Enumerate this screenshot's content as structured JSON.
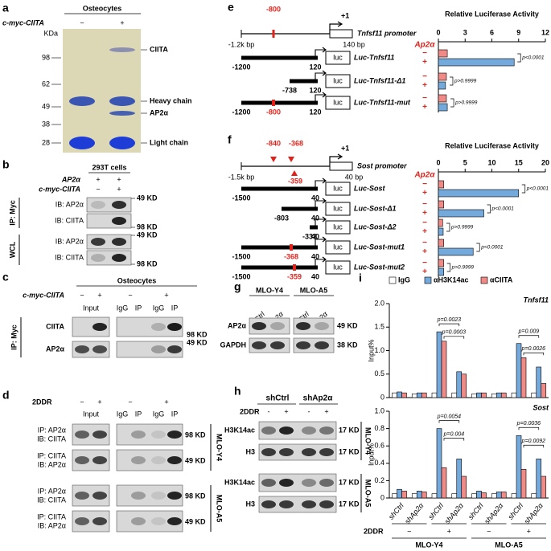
{
  "panel_a": {
    "label": "a",
    "title": "Osteocytes",
    "row_label": "c-myc-CIITA",
    "signs": [
      "−",
      "+"
    ],
    "unit": "KDa",
    "markers": [
      98,
      62,
      49,
      38,
      28
    ],
    "bands": [
      "CIITA",
      "Heavy chain",
      "AP2α",
      "Light chain"
    ]
  },
  "panel_b": {
    "label": "b",
    "title": "293T cells",
    "rows": [
      {
        "label": "AP2α",
        "signs": [
          "+",
          "+"
        ]
      },
      {
        "label": "c-myc-CIITA",
        "signs": [
          "−",
          "+"
        ]
      }
    ],
    "groups": [
      {
        "label": "IP: Myc",
        "blots": [
          {
            "label": "IB: AP2α",
            "size": "49 KD"
          },
          {
            "label": "IB: CIITA",
            "size": "98 KD"
          }
        ]
      },
      {
        "label": "WCL",
        "blots": [
          {
            "label": "IB: AP2α",
            "size": "49 KD"
          },
          {
            "label": "IB: CIITA",
            "size": "98 KD"
          }
        ]
      }
    ]
  },
  "panel_c": {
    "label": "c",
    "title": "Osteocytes",
    "row_label": "c-myc-CIITA",
    "signs": [
      "−",
      "+",
      "−",
      "+"
    ],
    "lanes": [
      "Input",
      "IgG",
      "IP",
      "IgG",
      "IP"
    ],
    "group": "IP: Myc",
    "blots": [
      {
        "label": "CIITA",
        "size": "98 KD"
      },
      {
        "label": "AP2α",
        "size": "49 KD"
      }
    ]
  },
  "panel_d": {
    "label": "d",
    "row_label": "2DDR",
    "signs": [
      "−",
      "+",
      "−",
      "+"
    ],
    "lanes": [
      "Input",
      "IgG",
      "IP",
      "IgG",
      "IP"
    ],
    "blots": [
      {
        "ip": "IP: AP2α",
        "ib": "IB: CIITA",
        "size": "98 KD"
      },
      {
        "ip": "IP: CIITA",
        "ib": "IB: AP2α",
        "size": "49 KD"
      },
      {
        "ip": "IP: AP2α",
        "ib": "IB: CIITA",
        "size": "98 KD"
      },
      {
        "ip": "IP: CIITA",
        "ib": "IB: AP2α",
        "size": "49 KD"
      }
    ],
    "cells": [
      "MLO-Y4",
      "MLO-A5"
    ]
  },
  "panel_e": {
    "label": "e",
    "mutations": [
      "-800"
    ],
    "tss": "+1",
    "promoter": "Tnfsf11 promoter",
    "start": "-1.2k bp",
    "end": "140 bp",
    "constructs": [
      {
        "start": "-1200",
        "end": "120",
        "box": "luc",
        "name": "Luc-Tnfsf11"
      },
      {
        "start": "-738",
        "end": "120",
        "box": "luc",
        "name": "Luc-Tnfsf11-Δ1"
      },
      {
        "start": "-1200",
        "mut": "-800",
        "end": "120",
        "box": "luc",
        "name": "Luc-Tnfsf11-mut"
      }
    ]
  },
  "panel_f": {
    "label": "f",
    "mutations": [
      "-840",
      "-368",
      "-359"
    ],
    "tss": "+1",
    "promoter": "Sost promoter",
    "start": "-1.5k bp",
    "end": "40 bp",
    "constructs": [
      {
        "start": "-1500",
        "end": "40",
        "box": "luc",
        "name": "Luc-Sost"
      },
      {
        "start": "-803",
        "end": "40",
        "box": "luc",
        "name": "Luc-Sost-Δ1"
      },
      {
        "start": "-333",
        "end": "40",
        "box": "luc",
        "name": "Luc-Sost-Δ2"
      },
      {
        "start": "-1500",
        "mut": "-368",
        "end": "40",
        "box": "luc",
        "name": "Luc-Sost-mut1"
      },
      {
        "start": "-1500",
        "mut": "-359",
        "end": "40",
        "box": "luc",
        "name": "Luc-Sost-mut2"
      }
    ]
  },
  "panel_g": {
    "label": "g",
    "cells": [
      "MLO-Y4",
      "MLO-A5"
    ],
    "lanes": [
      "shCtrl",
      "shAp2α",
      "shCtrl",
      "shAp2α"
    ],
    "blots": [
      {
        "label": "AP2α",
        "size": "49 KD"
      },
      {
        "label": "GAPDH",
        "size": "38 KD"
      }
    ]
  },
  "panel_h": {
    "label": "h",
    "groups": [
      "shCtrl",
      "shAp2α"
    ],
    "row_label": "2DDR",
    "signs": [
      "-",
      "+",
      "-",
      "+"
    ],
    "blots": [
      {
        "label": "H3K14ac",
        "size": "17 KD"
      },
      {
        "label": "H3",
        "size": "17 KD"
      },
      {
        "label": "H3K14ac",
        "size": "17 KD"
      },
      {
        "label": "H3",
        "size": "17 KD"
      }
    ],
    "cells": [
      "MLO-Y4",
      "MLO-A5"
    ]
  },
  "panel_i": {
    "label": "i",
    "categories": [
      "shCtrl",
      "shAp2α",
      "shCtrl",
      "shAp2α",
      "shCtrl",
      "shAp2α",
      "shCtrl",
      "shAp2α"
    ],
    "row_label": "2DDR",
    "signs": [
      "−",
      "+",
      "−",
      "+"
    ],
    "cells": [
      "MLO-Y4",
      "MLO-A5"
    ]
  },
  "chart_data": [
    {
      "type": "hbar",
      "title": "Relative Luciferase Activity",
      "signs_label": "Ap2α",
      "xlim": [
        0,
        12
      ],
      "xticks": [
        0,
        3,
        6,
        9,
        12
      ],
      "series": [
        {
          "name": "−",
          "color": "#ef8a87",
          "values": [
            1,
            0.9,
            0.9
          ]
        },
        {
          "name": "+",
          "color": "#74a9dc",
          "values": [
            8.5,
            0.8,
            1
          ]
        }
      ],
      "p_values": [
        "p<0.0001",
        "p>0.9999",
        "p>0.9999"
      ]
    },
    {
      "type": "hbar",
      "title": "Relative Luciferase Activity",
      "signs_label": "Ap2α",
      "xlim": [
        0,
        20
      ],
      "xticks": [
        0,
        5,
        10,
        15,
        20
      ],
      "series": [
        {
          "name": "−",
          "color": "#ef8a87",
          "values": [
            1,
            1,
            0.8,
            1,
            1
          ]
        },
        {
          "name": "+",
          "color": "#74a9dc",
          "values": [
            15,
            8.5,
            0.9,
            6.5,
            1
          ]
        }
      ],
      "p_values": [
        "p<0.0001",
        "p<0.0001",
        "p>0.9999",
        "p<0.0001",
        "p>0.9999"
      ]
    },
    {
      "type": "grouped_bar",
      "title": "Tnfsf11",
      "ylabel": "Input%",
      "ylim": [
        0,
        2
      ],
      "yticks": [
        0,
        0.5,
        {
          "value": 1,
          "label": "1.0"
        },
        1.5,
        {
          "value": 2,
          "label": "2.0"
        }
      ],
      "series": [
        {
          "name": "IgG",
          "color": "#ffffff",
          "values": [
            0.1,
            0.08,
            0.1,
            0.1,
            0.08,
            0.08,
            0.1,
            0.1
          ]
        },
        {
          "name": "αH3K14ac",
          "color": "#74a9dc",
          "values": [
            0.12,
            0.1,
            1.4,
            0.55,
            0.1,
            0.1,
            1.15,
            0.65
          ]
        },
        {
          "name": "αCIITA",
          "color": "#ef8a87",
          "values": [
            0.1,
            0.1,
            1.2,
            0.5,
            0.1,
            0.1,
            0.85,
            0.3
          ]
        }
      ],
      "p_values": [
        "p=0.0023",
        "p=0.0003",
        "p=0.009",
        "p=0.0026"
      ]
    },
    {
      "type": "grouped_bar",
      "title": "Sost",
      "ylabel": "Input%",
      "ylim": [
        0,
        1
      ],
      "yticks": [
        0,
        0.2,
        0.4,
        0.6,
        0.8,
        {
          "value": 1,
          "label": "1.0"
        }
      ],
      "series": [
        {
          "color": "#ffffff",
          "values": [
            0.05,
            0.05,
            0.05,
            0.05,
            0.05,
            0.05,
            0.05,
            0.05
          ]
        },
        {
          "color": "#74a9dc",
          "values": [
            0.1,
            0.08,
            0.8,
            0.45,
            0.08,
            0.07,
            0.72,
            0.45
          ]
        },
        {
          "color": "#ef8a87",
          "values": [
            0.08,
            0.07,
            0.35,
            0.25,
            0.06,
            0.07,
            0.33,
            0.25
          ]
        }
      ],
      "p_values": [
        "p=0.0054",
        "p=0.004",
        "p=0.0036",
        "p=0.0092"
      ]
    }
  ]
}
